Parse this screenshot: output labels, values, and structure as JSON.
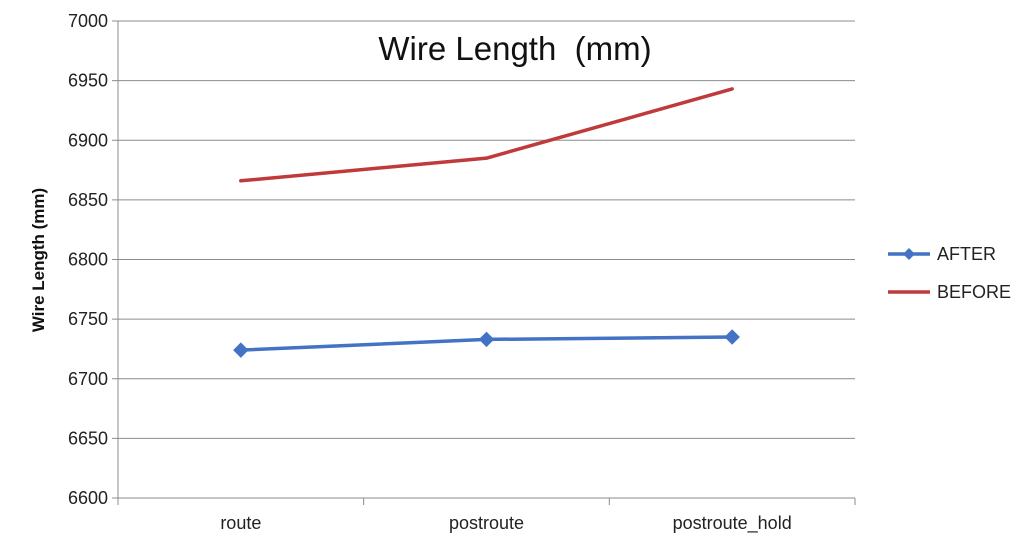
{
  "chart_data": {
    "type": "line",
    "title": "Wire Length  (mm)",
    "xlabel": "",
    "ylabel": "Wire Length (mm)",
    "categories": [
      "route",
      "postroute",
      "postroute_hold"
    ],
    "ylim": [
      6600,
      7000
    ],
    "yticks": [
      6600,
      6650,
      6700,
      6750,
      6800,
      6850,
      6900,
      6950,
      7000
    ],
    "grid": "horizontal",
    "legend": "right",
    "series": [
      {
        "name": "AFTER",
        "values": [
          6724,
          6733,
          6735
        ],
        "color": "#4472c4",
        "marker": "diamond"
      },
      {
        "name": "BEFORE",
        "values": [
          6866,
          6885,
          6943
        ],
        "color": "#c0393b",
        "marker": "none"
      }
    ]
  }
}
